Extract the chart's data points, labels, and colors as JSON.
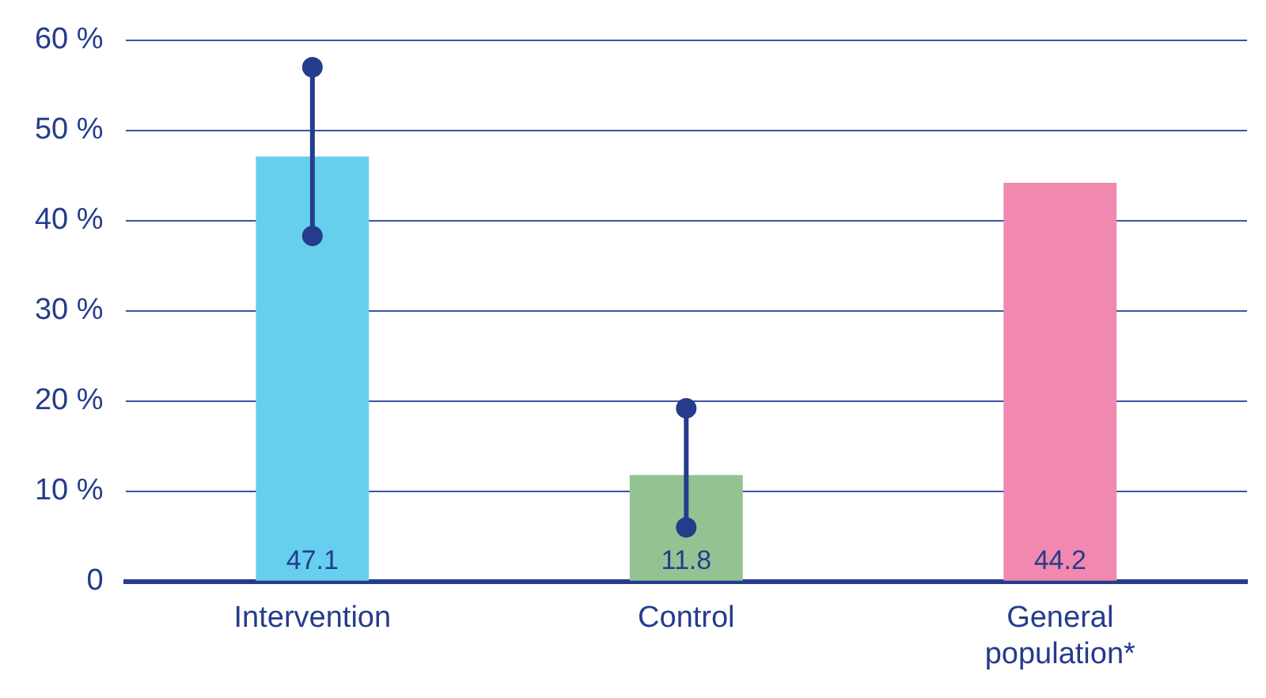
{
  "chart_data": {
    "type": "bar",
    "categories": [
      "Intervention",
      "Control",
      "General population*"
    ],
    "series": [
      {
        "type": "bar",
        "colors": [
          "#66cfee",
          "#93c393",
          "#f088b0"
        ],
        "values": [
          47.1,
          11.8,
          44.2
        ],
        "value_labels": [
          "47.1",
          "11.8",
          "44.2"
        ]
      },
      {
        "type": "line",
        "x": [
          "Intervention",
          "Intervention"
        ],
        "values": [
          38.3,
          57.0
        ],
        "color": "#253c8c"
      },
      {
        "type": "line",
        "x": [
          "Control",
          "Control"
        ],
        "values": [
          6.0,
          19.2
        ],
        "color": "#253c8c"
      }
    ],
    "marker": "circle",
    "ylim": [
      0,
      60
    ],
    "yticks": [
      {
        "value": 0,
        "label": "0"
      },
      {
        "value": 10,
        "label": "10 %"
      },
      {
        "value": 20,
        "label": "20 %"
      },
      {
        "value": 30,
        "label": "30 %"
      },
      {
        "value": 40,
        "label": "40 %"
      },
      {
        "value": 50,
        "label": "50 %"
      },
      {
        "value": 60,
        "label": "60 %"
      }
    ],
    "grid": "y",
    "legend": false
  }
}
